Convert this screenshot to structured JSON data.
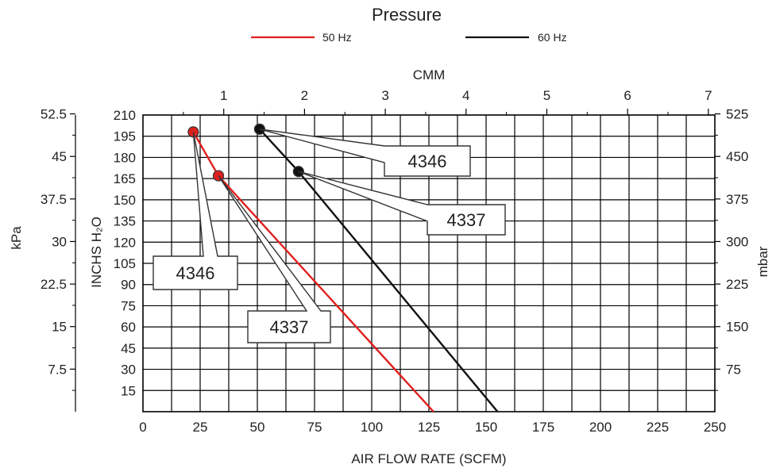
{
  "chart_data": {
    "type": "line",
    "title": "Pressure",
    "legend": {
      "position": "top-center",
      "entries": [
        {
          "name": "50 Hz",
          "color": "#e0201e"
        },
        {
          "name": "60 Hz",
          "color": "#111111"
        }
      ]
    },
    "x_axis": {
      "label": "AIR FLOW RATE (SCFM)",
      "range": [
        0,
        250
      ],
      "ticks": [
        "0",
        "25",
        "50",
        "75",
        "100",
        "125",
        "150",
        "175",
        "200",
        "225",
        "250"
      ]
    },
    "x2_axis": {
      "label": "CMM",
      "range": [
        0,
        7.08
      ],
      "ticks": [
        "1",
        "2",
        "3",
        "4",
        "5",
        "6",
        "7"
      ]
    },
    "y_axis": {
      "label": "INCHS H₂O",
      "range": [
        0,
        210
      ],
      "ticks": [
        "15",
        "30",
        "45",
        "60",
        "75",
        "90",
        "105",
        "120",
        "135",
        "150",
        "165",
        "180",
        "195",
        "210"
      ]
    },
    "y_left_outer_axis": {
      "label": "kPa",
      "range": [
        0,
        52.3
      ],
      "ticks": [
        "7.5",
        "15",
        "22.5",
        "30",
        "37.5",
        "45",
        "52.5"
      ]
    },
    "y_right_axis": {
      "label": "mbar",
      "range": [
        0,
        523
      ],
      "ticks": [
        "75",
        "150",
        "225",
        "300",
        "375",
        "450",
        "525"
      ]
    },
    "grid": true,
    "series": [
      {
        "name": "50 Hz",
        "color": "#e0201e",
        "points": [
          {
            "x": 22,
            "y": 198
          },
          {
            "x": 33,
            "y": 167
          },
          {
            "x": 127,
            "y": 0
          }
        ]
      },
      {
        "name": "60 Hz",
        "color": "#111111",
        "points": [
          {
            "x": 51,
            "y": 200
          },
          {
            "x": 68,
            "y": 170
          },
          {
            "x": 155,
            "y": 0
          }
        ]
      }
    ],
    "annotations": [
      {
        "text": "4346",
        "series": "60 Hz",
        "x": 51,
        "y": 200
      },
      {
        "text": "4337",
        "series": "60 Hz",
        "x": 68,
        "y": 170
      },
      {
        "text": "4346",
        "series": "50 Hz",
        "x": 22,
        "y": 198
      },
      {
        "text": "4337",
        "series": "50 Hz",
        "x": 33,
        "y": 167
      }
    ]
  }
}
